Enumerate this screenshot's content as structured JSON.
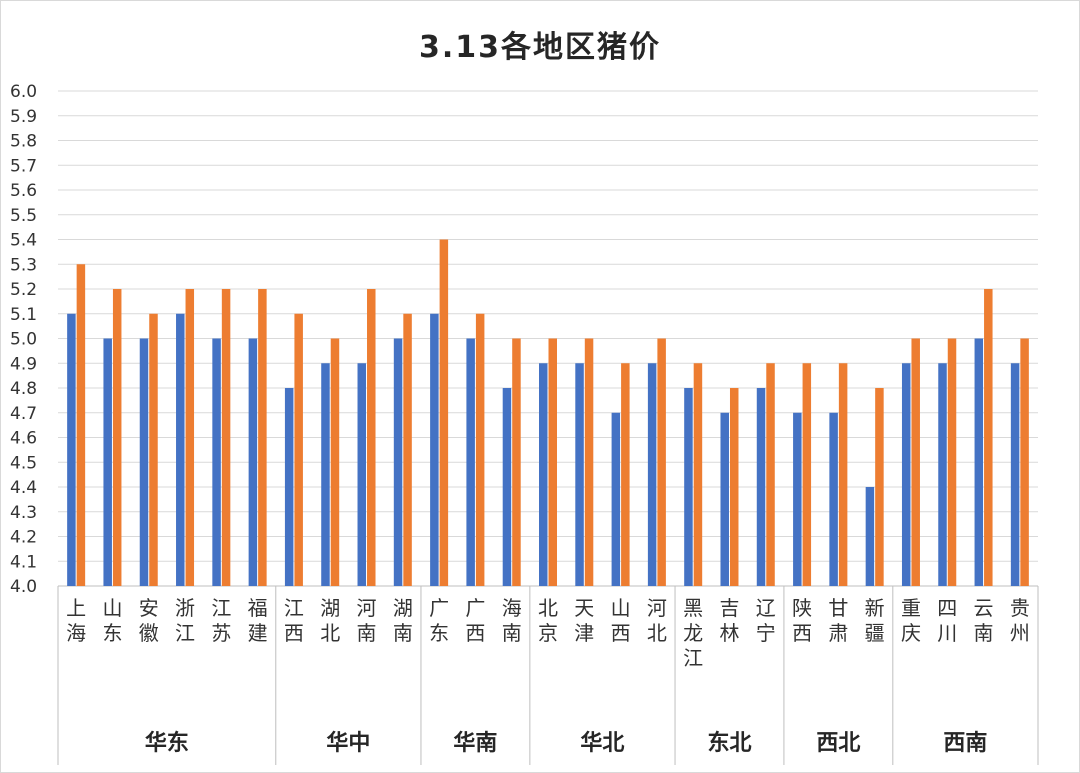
{
  "chart_data": {
    "type": "bar",
    "title": "3.13各地区猪价",
    "ylim": [
      4.0,
      6.0
    ],
    "y_ticks": [
      "4.0",
      "4.1",
      "4.2",
      "4.3",
      "4.4",
      "4.5",
      "4.6",
      "4.7",
      "4.8",
      "4.9",
      "5.0",
      "5.1",
      "5.2",
      "5.3",
      "5.4",
      "5.5",
      "5.6",
      "5.7",
      "5.8",
      "5.9",
      "6.0"
    ],
    "grid": true,
    "legend": "none",
    "categories": [
      "上海",
      "山东",
      "安徽",
      "浙江",
      "江苏",
      "福建",
      "江西",
      "湖北",
      "河南",
      "湖南",
      "广东",
      "广西",
      "海南",
      "北京",
      "天津",
      "山西",
      "河北",
      "黑龙江",
      "吉林",
      "辽宁",
      "陕西",
      "甘肃",
      "新疆",
      "重庆",
      "四川",
      "云南",
      "贵州"
    ],
    "groups": [
      {
        "label": "华东",
        "count": 6
      },
      {
        "label": "华中",
        "count": 4
      },
      {
        "label": "华南",
        "count": 3
      },
      {
        "label": "华北",
        "count": 4
      },
      {
        "label": "东北",
        "count": 3
      },
      {
        "label": "西北",
        "count": 3
      },
      {
        "label": "西南",
        "count": 4
      }
    ],
    "series": [
      {
        "color": "#4472C4",
        "values": [
          5.1,
          5.0,
          5.0,
          5.1,
          5.0,
          5.0,
          4.8,
          4.9,
          4.9,
          5.0,
          5.1,
          5.0,
          4.8,
          4.9,
          4.9,
          4.7,
          4.9,
          4.8,
          4.7,
          4.8,
          4.7,
          4.7,
          4.4,
          4.9,
          4.9,
          5.0,
          4.9
        ]
      },
      {
        "color": "#ED7D31",
        "values": [
          5.3,
          5.2,
          5.1,
          5.2,
          5.2,
          5.2,
          5.1,
          5.0,
          5.2,
          5.1,
          5.4,
          5.1,
          5.0,
          5.0,
          5.0,
          4.9,
          5.0,
          4.9,
          4.8,
          4.9,
          4.9,
          4.9,
          4.8,
          5.0,
          5.0,
          5.2,
          5.0
        ]
      }
    ]
  }
}
